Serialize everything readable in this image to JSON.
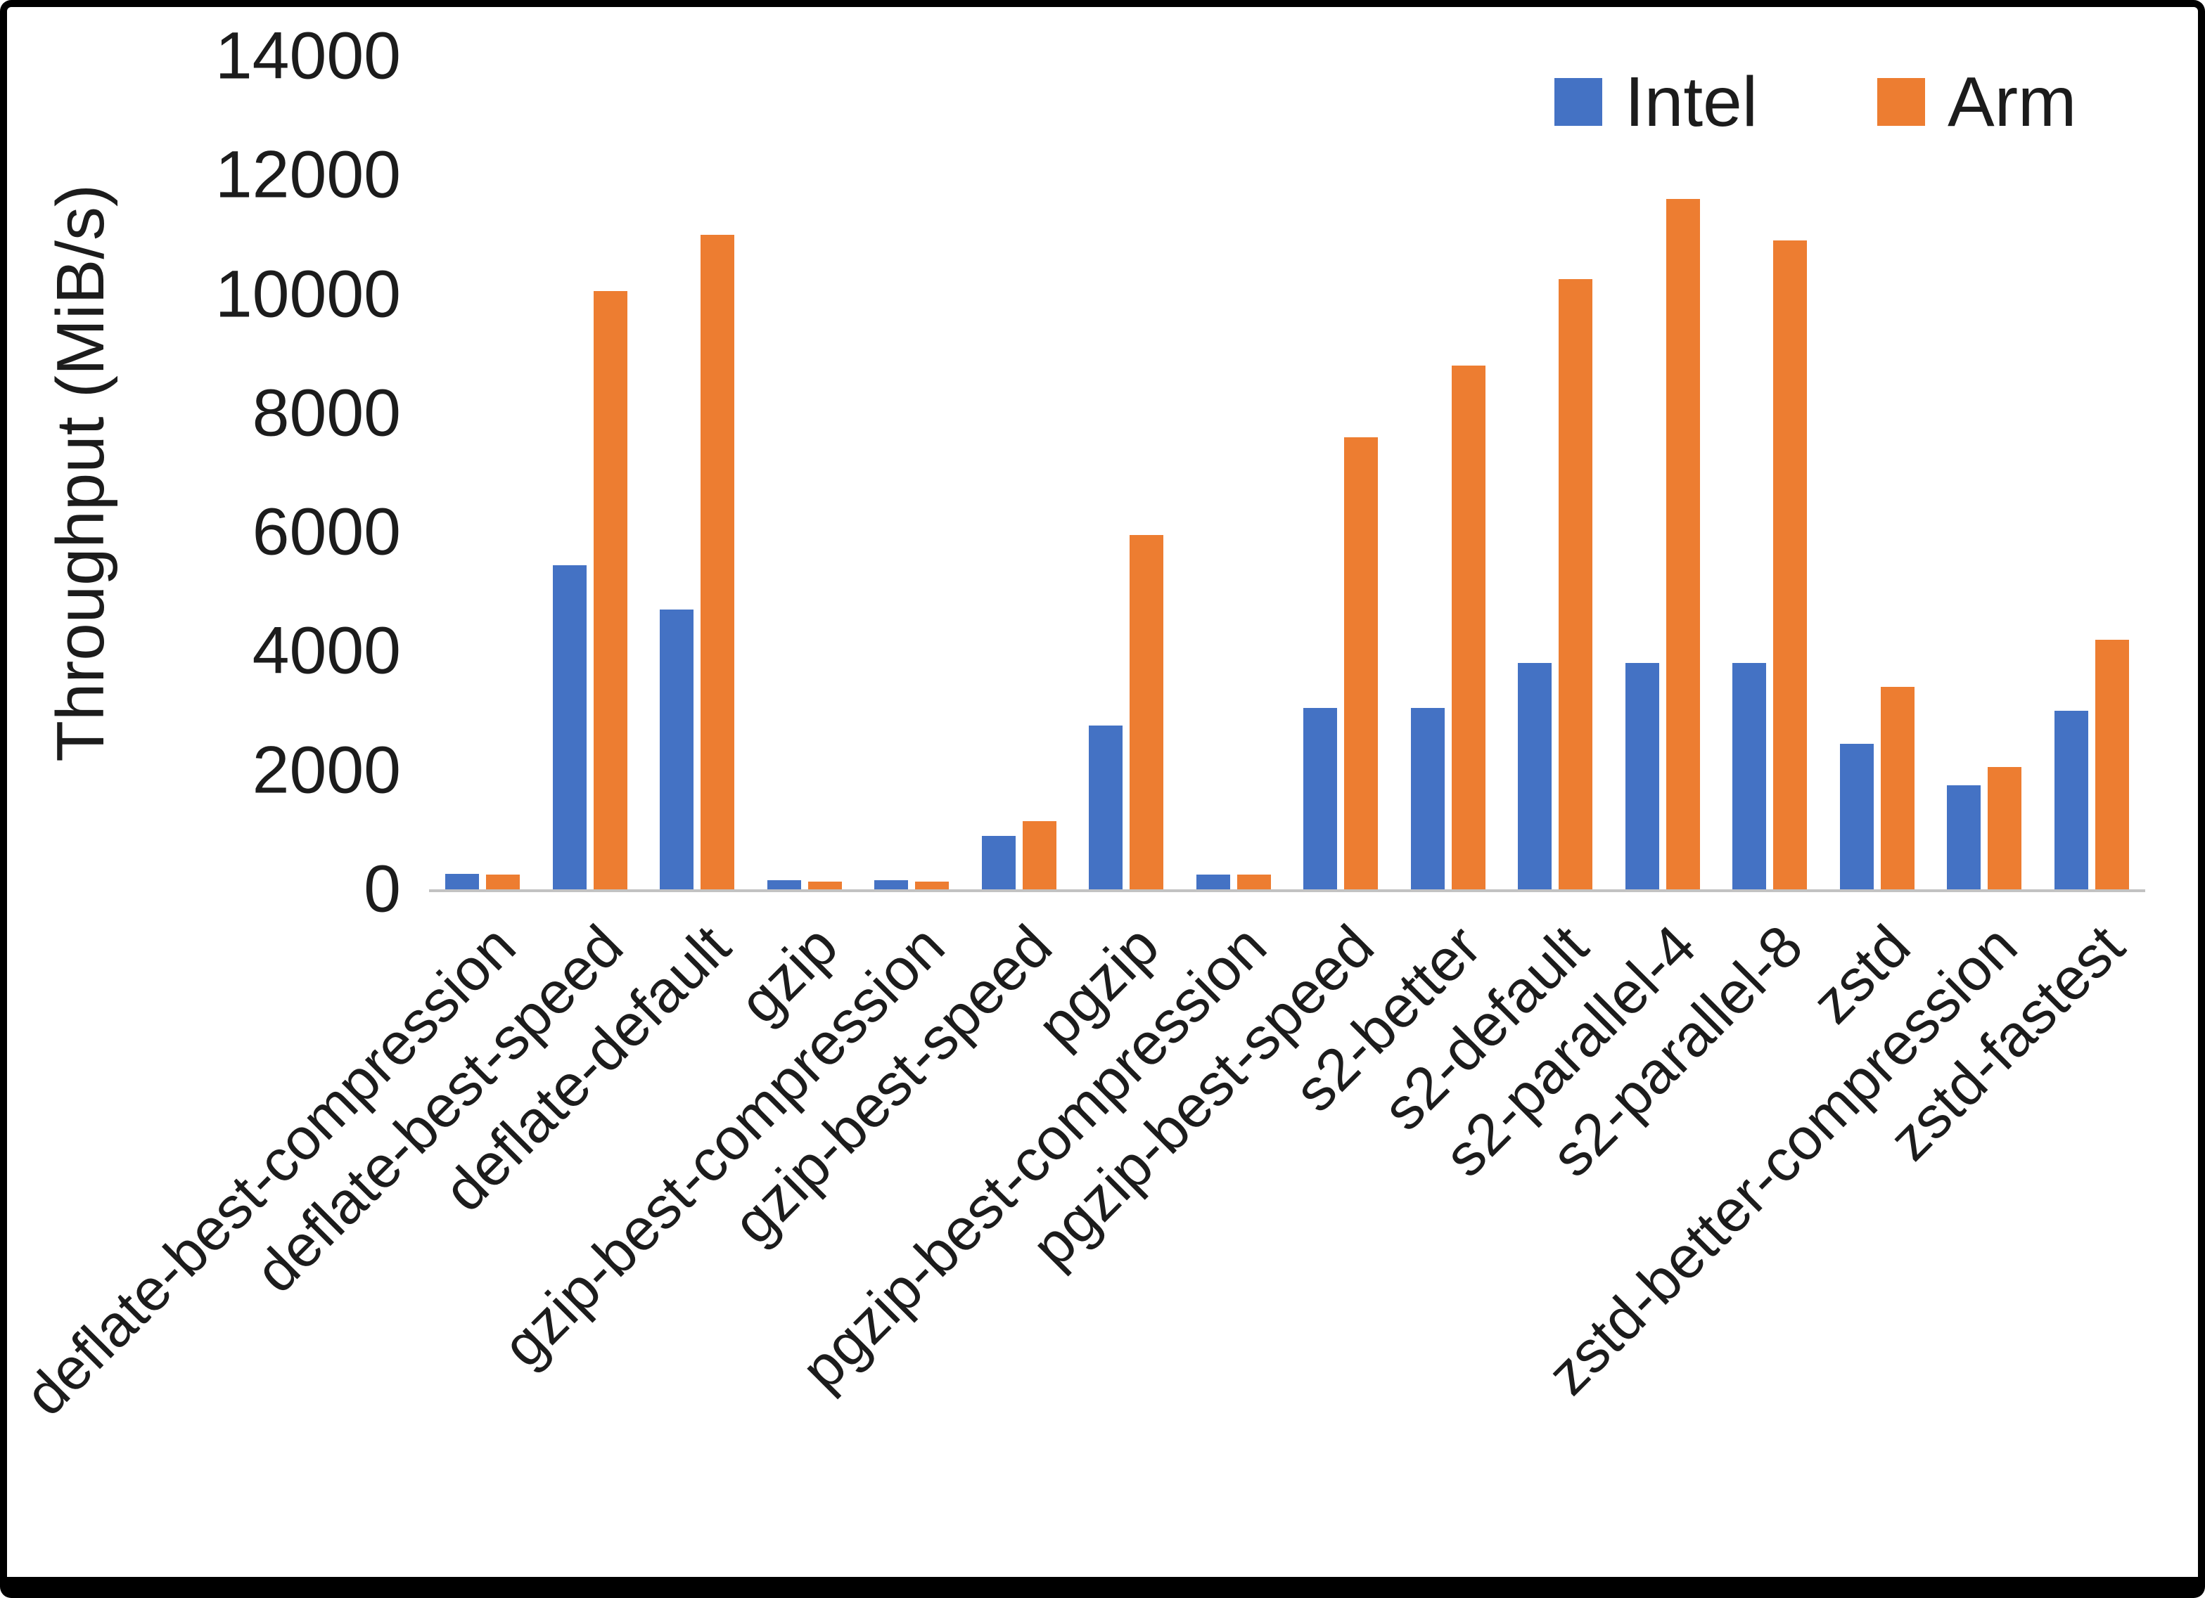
{
  "chart_data": {
    "type": "bar",
    "title": "",
    "xlabel": "",
    "ylabel": "Throughput (MiB/s)",
    "ylim": [
      0,
      14000
    ],
    "ytick_step": 2000,
    "yticks": [
      0,
      2000,
      4000,
      6000,
      8000,
      10000,
      12000,
      14000
    ],
    "grid": false,
    "legend_position": "top-right",
    "background_color": "#ffffff",
    "axis_line_color": "#c2c2c2",
    "categories": [
      "deflate-best-compression",
      "deflate-best-speed",
      "deflate-default",
      "gzip",
      "gzip-best-compression",
      "gzip-best-speed",
      "pgzip",
      "pgzip-best-compression",
      "pgzip-best-speed",
      "s2-better",
      "s2-default",
      "s2-parallel-4",
      "s2-parallel-8",
      "zstd",
      "zstd-better-compression",
      "zstd-fastest"
    ],
    "series": [
      {
        "name": "Intel",
        "color": "#4472C4",
        "values": [
          260,
          5450,
          4700,
          150,
          150,
          900,
          2750,
          250,
          3050,
          3050,
          3800,
          3800,
          3800,
          2450,
          1750,
          3000
        ]
      },
      {
        "name": "Arm",
        "color": "#ED7D31",
        "values": [
          250,
          10050,
          11000,
          130,
          130,
          1150,
          5950,
          250,
          7600,
          8800,
          10250,
          11600,
          10900,
          3400,
          2050,
          4200
        ]
      }
    ]
  }
}
